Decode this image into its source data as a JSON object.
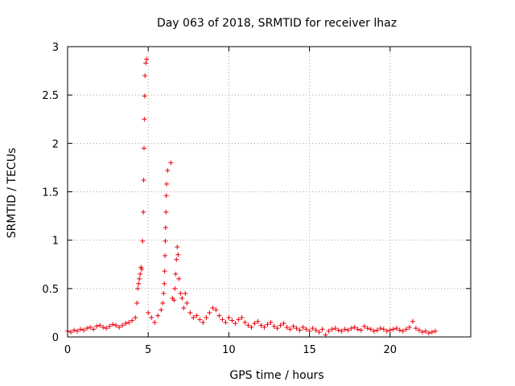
{
  "chart_data": {
    "type": "scatter",
    "title": "Day 063 of 2018, SRMTID for receiver lhaz",
    "xlabel": "GPS time / hours",
    "ylabel": "SRMTID / TECUs",
    "xlim": [
      0,
      25
    ],
    "ylim": [
      0,
      3
    ],
    "xticks": [
      0,
      5,
      10,
      15,
      20
    ],
    "xtick_labels": [
      "0",
      "5",
      "10",
      "15",
      "20"
    ],
    "yticks": [
      0,
      0.5,
      1,
      1.5,
      2,
      2.5,
      3
    ],
    "ytick_labels": [
      "0",
      "0.5",
      "1",
      "1.5",
      "2",
      "2.5",
      "3"
    ],
    "grid": true,
    "marker": "+",
    "color": "#e8000b",
    "series": [
      {
        "name": "SRMTID",
        "x": [
          0.0,
          0.2,
          0.4,
          0.6,
          0.8,
          1.0,
          1.2,
          1.4,
          1.6,
          1.8,
          2.0,
          2.2,
          2.4,
          2.6,
          2.8,
          3.0,
          3.2,
          3.4,
          3.6,
          3.8,
          4.0,
          4.2,
          4.3,
          4.35,
          4.4,
          4.45,
          4.5,
          4.55,
          4.6,
          4.65,
          4.7,
          4.72,
          4.74,
          4.76,
          4.78,
          4.8,
          4.85,
          4.9,
          5.0,
          5.2,
          5.4,
          5.6,
          5.8,
          5.9,
          5.95,
          6.0,
          6.02,
          6.04,
          6.06,
          6.08,
          6.1,
          6.12,
          6.14,
          6.2,
          6.4,
          6.5,
          6.6,
          6.65,
          6.7,
          6.75,
          6.8,
          6.85,
          6.9,
          7.0,
          7.1,
          7.2,
          7.3,
          7.4,
          7.6,
          7.8,
          8.0,
          8.2,
          8.4,
          8.6,
          8.8,
          9.0,
          9.2,
          9.4,
          9.6,
          9.8,
          10.0,
          10.2,
          10.4,
          10.6,
          10.8,
          11.0,
          11.2,
          11.4,
          11.6,
          11.8,
          12.0,
          12.2,
          12.4,
          12.6,
          12.8,
          13.0,
          13.2,
          13.4,
          13.6,
          13.8,
          14.0,
          14.2,
          14.4,
          14.6,
          14.8,
          15.0,
          15.2,
          15.4,
          15.6,
          15.8,
          16.0,
          16.2,
          16.4,
          16.6,
          16.8,
          17.0,
          17.2,
          17.4,
          17.6,
          17.8,
          18.0,
          18.2,
          18.4,
          18.6,
          18.8,
          19.0,
          19.2,
          19.4,
          19.6,
          19.8,
          20.0,
          20.2,
          20.4,
          20.6,
          20.8,
          21.0,
          21.2,
          21.4,
          21.6,
          21.8,
          22.0,
          22.2,
          22.4,
          22.6,
          22.8
        ],
        "y": [
          0.06,
          0.05,
          0.07,
          0.06,
          0.08,
          0.07,
          0.09,
          0.1,
          0.08,
          0.11,
          0.12,
          0.1,
          0.09,
          0.11,
          0.13,
          0.12,
          0.1,
          0.12,
          0.14,
          0.15,
          0.17,
          0.2,
          0.35,
          0.5,
          0.55,
          0.6,
          0.65,
          0.72,
          0.7,
          0.99,
          1.29,
          1.62,
          1.95,
          2.25,
          2.49,
          2.7,
          2.83,
          2.87,
          0.25,
          0.2,
          0.15,
          0.22,
          0.28,
          0.35,
          0.45,
          0.55,
          0.68,
          0.84,
          0.99,
          1.13,
          1.29,
          1.46,
          1.58,
          1.72,
          1.8,
          0.4,
          0.38,
          0.5,
          0.65,
          0.8,
          0.93,
          0.85,
          0.6,
          0.45,
          0.4,
          0.3,
          0.45,
          0.35,
          0.25,
          0.2,
          0.22,
          0.18,
          0.15,
          0.2,
          0.25,
          0.3,
          0.28,
          0.22,
          0.18,
          0.15,
          0.2,
          0.17,
          0.14,
          0.18,
          0.2,
          0.15,
          0.12,
          0.1,
          0.14,
          0.16,
          0.12,
          0.1,
          0.13,
          0.15,
          0.11,
          0.09,
          0.12,
          0.14,
          0.1,
          0.08,
          0.11,
          0.09,
          0.07,
          0.1,
          0.08,
          0.06,
          0.09,
          0.07,
          0.05,
          0.08,
          0.02,
          0.06,
          0.08,
          0.09,
          0.07,
          0.06,
          0.08,
          0.07,
          0.09,
          0.1,
          0.08,
          0.07,
          0.11,
          0.09,
          0.08,
          0.06,
          0.07,
          0.09,
          0.08,
          0.06,
          0.07,
          0.08,
          0.09,
          0.07,
          0.06,
          0.08,
          0.1,
          0.16,
          0.09,
          0.07,
          0.05,
          0.06,
          0.04,
          0.05,
          0.06
        ]
      }
    ]
  }
}
